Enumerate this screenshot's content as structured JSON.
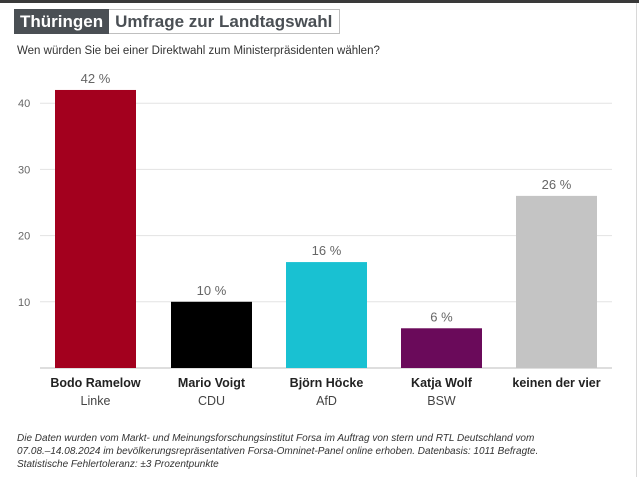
{
  "header": {
    "tag": "Thüringen",
    "title": "Umfrage zur Landtagswahl",
    "question": "Wen würden Sie bei einer Direktwahl zum Ministerpräsidenten wählen?"
  },
  "chart_data": {
    "type": "bar",
    "categories": [
      "Bodo Ramelow",
      "Mario Voigt",
      "Björn Höcke",
      "Katja Wolf",
      "keinen der vier"
    ],
    "subcategories": [
      "Linke",
      "CDU",
      "AfD",
      "BSW",
      ""
    ],
    "values": [
      42,
      10,
      16,
      6,
      26
    ],
    "value_labels": [
      "42 %",
      "10 %",
      "16 %",
      "6 %",
      "26 %"
    ],
    "colors": [
      "#a3001e",
      "#000000",
      "#19c1d2",
      "#6a0a5a",
      "#c4c4c4"
    ],
    "yticks": [
      10,
      20,
      30,
      40
    ],
    "ylim": [
      0,
      45
    ],
    "grid": true
  },
  "footer": {
    "line1": "Die Daten wurden vom Markt- und Meinungsforschungsinstitut Forsa im Auftrag von stern und RTL Deutschland vom",
    "line2": "07.08.–14.08.2024 im bevölkerungsrepräsentativen Forsa-Omninet-Panel online erhoben. Datenbasis: 1011 Befragte.",
    "line3": "Statistische Fehlertoleranz: ±3 Prozentpunkte"
  }
}
